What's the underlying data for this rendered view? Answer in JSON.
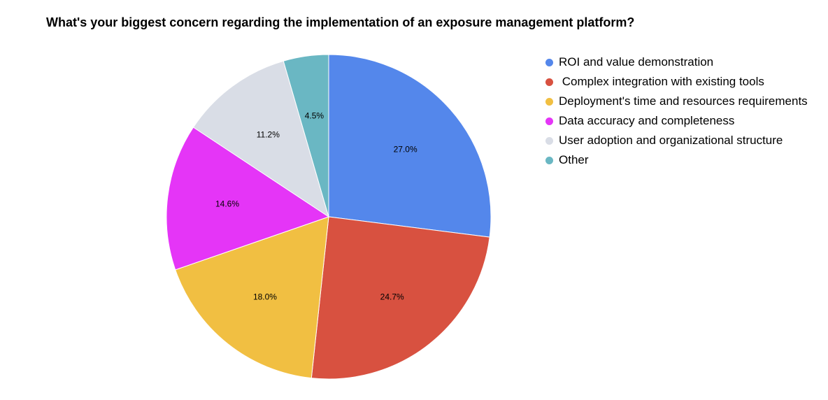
{
  "chart_data": {
    "type": "pie",
    "title": "What's your biggest concern regarding the implementation of an exposure management platform?",
    "legend_position": "right",
    "slices": [
      {
        "label": "ROI and value demonstration",
        "value": 27.0,
        "value_label": "27.0%",
        "color": "#5487EB"
      },
      {
        "label": " Complex integration with existing tools",
        "value": 24.7,
        "value_label": "24.7%",
        "color": "#D85140"
      },
      {
        "label": "Deployment's time and resources requirements",
        "value": 18.0,
        "value_label": "18.0%",
        "color": "#F1BF42"
      },
      {
        "label": "Data accuracy and completeness",
        "value": 14.6,
        "value_label": "14.6%",
        "color": "#E535F7"
      },
      {
        "label": "User adoption and organizational structure",
        "value": 11.2,
        "value_label": "11.2%",
        "color": "#D9DDE6"
      },
      {
        "label": "Other",
        "value": 4.5,
        "value_label": "4.5%",
        "color": "#6AB7C3"
      }
    ]
  }
}
